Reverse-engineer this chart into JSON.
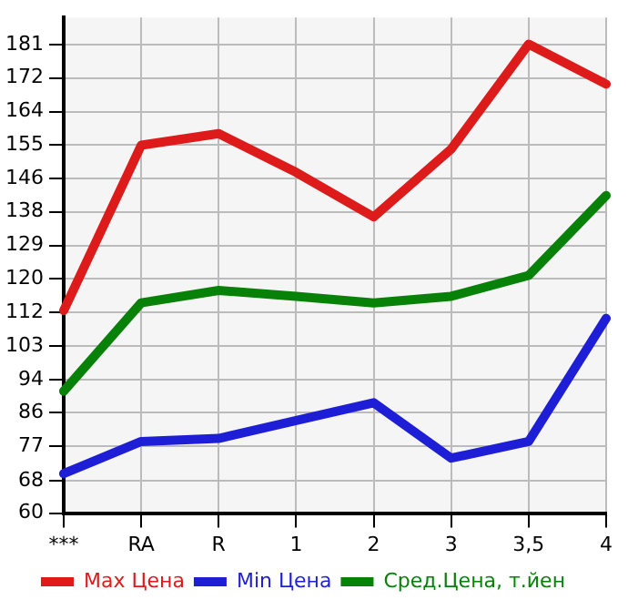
{
  "chart_data": {
    "type": "line",
    "categories": [
      "***",
      "RA",
      "R",
      "1",
      "2",
      "3",
      "3,5",
      "4"
    ],
    "series": [
      {
        "name": "Max Цена",
        "color": "#dd1b1b",
        "values": [
          112.3,
          155,
          158,
          148,
          136.5,
          154,
          181.1,
          170.8
        ]
      },
      {
        "name": "Min Цена",
        "color": "#1e1ed6",
        "values": [
          70.2,
          78.5,
          79.3,
          83.9,
          88.5,
          74.2,
          78.5,
          110.3
        ]
      },
      {
        "name": "Сред.Цена, т.йен",
        "color": "#078107",
        "values": [
          91.5,
          114.3,
          117.5,
          116,
          114.3,
          116,
          121.4,
          142
        ]
      }
    ],
    "ylim": [
      60,
      188
    ],
    "yticks": [
      60,
      {
        "value": 68.4,
        "label": "68"
      },
      {
        "value": 77.29,
        "label": "77"
      },
      {
        "value": 85.93,
        "label": "86"
      },
      {
        "value": 94.4,
        "label": "94"
      },
      {
        "value": 103.21,
        "label": "103"
      },
      {
        "value": 111.86,
        "label": "112"
      },
      {
        "value": 120.5,
        "label": "120"
      },
      {
        "value": 129.14,
        "label": "129"
      },
      {
        "value": 137.79,
        "label": "138"
      },
      {
        "value": 146.43,
        "label": "146"
      },
      {
        "value": 155.07,
        "label": "155"
      },
      {
        "value": 163.71,
        "label": "164"
      },
      {
        "value": 172.36,
        "label": "172"
      },
      181
    ],
    "grid": true,
    "legend": "bottom",
    "marker": "none",
    "line_style": "solid"
  }
}
